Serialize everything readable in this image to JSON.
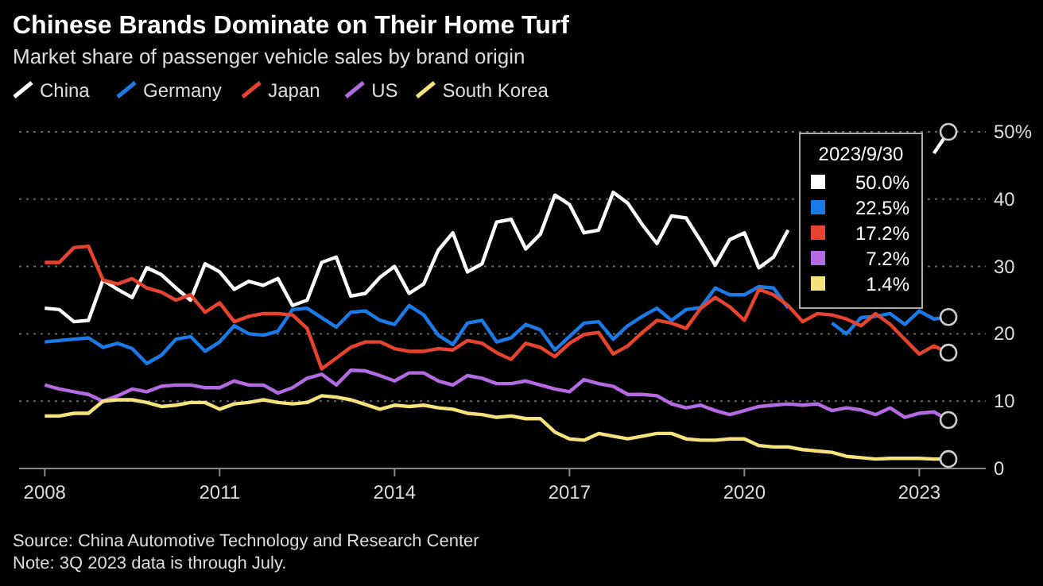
{
  "chart_data": {
    "type": "line",
    "title": "Chinese Brands Dominate on Their Home Turf",
    "subtitle": "Market share of passenger vehicle sales by brand origin",
    "x": [
      2008,
      2008.25,
      2008.5,
      2008.75,
      2009,
      2009.25,
      2009.5,
      2009.75,
      2010,
      2010.25,
      2010.5,
      2010.75,
      2011,
      2011.25,
      2011.5,
      2011.75,
      2012,
      2012.25,
      2012.5,
      2012.75,
      2013,
      2013.25,
      2013.5,
      2013.75,
      2014,
      2014.25,
      2014.5,
      2014.75,
      2015,
      2015.25,
      2015.5,
      2015.75,
      2016,
      2016.25,
      2016.5,
      2016.75,
      2017,
      2017.25,
      2017.5,
      2017.75,
      2018,
      2018.25,
      2018.5,
      2018.75,
      2019,
      2019.25,
      2019.5,
      2019.75,
      2020,
      2020.25,
      2020.5,
      2020.75,
      2021,
      2021.25,
      2021.5,
      2021.75,
      2022,
      2022.25,
      2022.5,
      2022.75,
      2023,
      2023.25,
      2023.5
    ],
    "series": [
      {
        "name": "China",
        "color": "#ffffff",
        "values": [
          23.8,
          23.6,
          21.8,
          22,
          28,
          26.6,
          25.4,
          29.8,
          28.8,
          26.8,
          25,
          30.4,
          29.2,
          26.6,
          27.8,
          27.2,
          28.2,
          24.2,
          25,
          30.6,
          31.4,
          25.6,
          26,
          28.4,
          30,
          26,
          27.4,
          32.4,
          35,
          29.2,
          30.4,
          36.6,
          37,
          32.6,
          34.8,
          40.6,
          39.2,
          35,
          35.4,
          41,
          39.4,
          36.2,
          33.4,
          37.5,
          37.2,
          33.8,
          30.2,
          34,
          35,
          29.8,
          31.4,
          35.4,
          null,
          null,
          null,
          null,
          null,
          null,
          null,
          null,
          null,
          46.8,
          50
        ]
      },
      {
        "name": "Germany",
        "color": "#1a7ae8",
        "values": [
          18.8,
          19,
          19.2,
          19.4,
          18,
          18.6,
          17.8,
          15.6,
          16.8,
          19.2,
          19.6,
          17.4,
          18.8,
          21.2,
          20,
          19.8,
          20.4,
          23.6,
          23.8,
          22.4,
          21,
          23.2,
          23.4,
          22,
          21.4,
          24.2,
          22.8,
          19.8,
          18.4,
          21.6,
          22,
          18.8,
          19.4,
          21.4,
          20.6,
          17.6,
          19.6,
          21.6,
          21.8,
          19.2,
          21.2,
          22.6,
          23.8,
          22,
          23.6,
          23.9,
          26.8,
          25.8,
          25.8,
          27,
          26.8,
          23.8,
          null,
          null,
          21.6,
          20,
          22.4,
          22.6,
          23,
          21.4,
          23.4,
          22.2,
          22.5
        ]
      },
      {
        "name": "Japan",
        "color": "#e8432f",
        "values": [
          30.6,
          30.6,
          32.8,
          33,
          28,
          27.4,
          28.2,
          26.8,
          26.2,
          25,
          25.8,
          23.2,
          24.6,
          21.8,
          22.6,
          23,
          23,
          22.8,
          20.8,
          14.8,
          16.4,
          18,
          18.8,
          18.8,
          17.8,
          17.4,
          17.4,
          17.8,
          17.6,
          19,
          18.6,
          17.2,
          16.2,
          18.6,
          18,
          16.6,
          18.6,
          19.9,
          20.2,
          17,
          18.2,
          20.2,
          22,
          21.6,
          20.8,
          23.8,
          25.4,
          24,
          22,
          26.6,
          25.8,
          24.2,
          21.8,
          23,
          22.8,
          22.2,
          21.2,
          23,
          21.4,
          19.2,
          17,
          18.2,
          17.2
        ]
      },
      {
        "name": "US",
        "color": "#b36ae2",
        "values": [
          12.4,
          11.8,
          11.4,
          11,
          10,
          10.8,
          11.8,
          11.4,
          12.2,
          12.4,
          12.4,
          12,
          12,
          13,
          12.4,
          12.4,
          11.2,
          12,
          13.4,
          14,
          12.4,
          14.6,
          14.5,
          13.8,
          13,
          14.2,
          14.2,
          13,
          12.4,
          13.8,
          13.4,
          12.6,
          12.6,
          13,
          12.4,
          11.8,
          11.4,
          13.2,
          12.6,
          12.2,
          11,
          11,
          10.8,
          9.6,
          9,
          9.4,
          8.6,
          8,
          8.6,
          9.2,
          9.4,
          9.6,
          9.4,
          9.6,
          8.6,
          9,
          8.7,
          8,
          9,
          7.6,
          8.2,
          8.4,
          7.2
        ]
      },
      {
        "name": "South Korea",
        "color": "#f6e27b",
        "values": [
          7.8,
          7.8,
          8.2,
          8.2,
          10,
          10.2,
          10.2,
          9.8,
          9.2,
          9.4,
          9.8,
          9.8,
          8.8,
          9.6,
          9.8,
          10.2,
          9.8,
          9.6,
          9.8,
          10.8,
          10.6,
          10.2,
          9.5,
          8.8,
          9.4,
          9.2,
          9.4,
          9,
          8.8,
          8.2,
          8,
          7.6,
          7.8,
          7.4,
          7.4,
          5.4,
          4.4,
          4.2,
          5.2,
          4.8,
          4.4,
          4.8,
          5.2,
          5.2,
          4.4,
          4.2,
          4.2,
          4.4,
          4.4,
          3.4,
          3.2,
          3.2,
          2.8,
          2.6,
          2.4,
          1.8,
          1.6,
          1.4,
          1.5,
          1.5,
          1.5,
          1.4,
          1.4
        ]
      }
    ],
    "xlim": [
      2007.56,
      2024.14
    ],
    "xticks": [
      2008,
      2011,
      2014,
      2017,
      2020,
      2023
    ],
    "ylim": [
      0,
      50
    ],
    "yticks": [
      0,
      10,
      20,
      30,
      40,
      {
        "value": 50,
        "label": "50%"
      }
    ],
    "grid": "y",
    "legend": "top left",
    "marker": "none",
    "line_style": "solid",
    "annotations": [
      "Source: China Automotive Technology and Research Center",
      "Note: 3Q 2023 data is through July.",
      "2023/9/30",
      "50.0%",
      "22.5%",
      "17.2%",
      "7.2%",
      "1.4%"
    ]
  }
}
